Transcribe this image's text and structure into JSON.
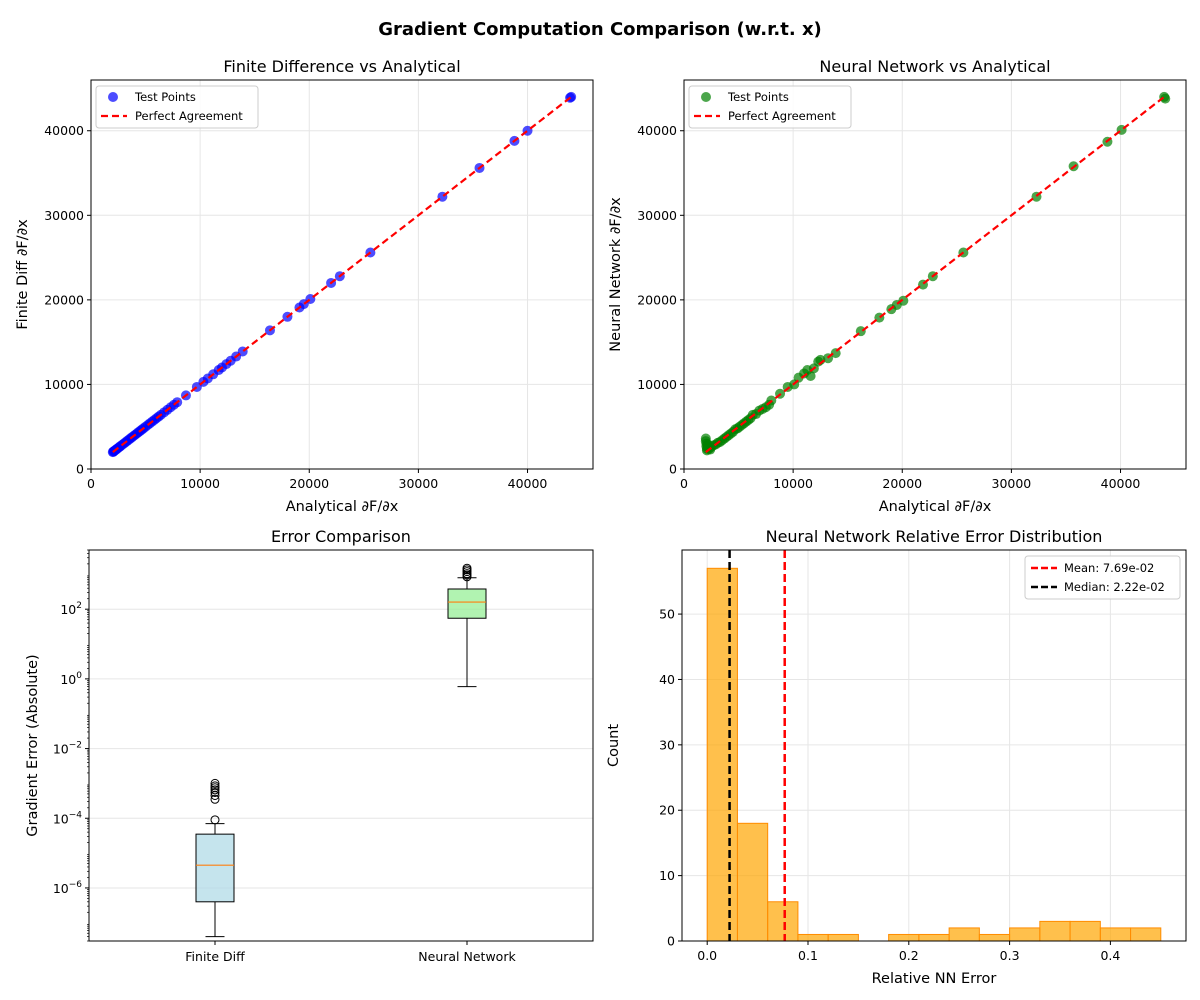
{
  "figure": {
    "suptitle": "Gradient Computation Comparison (w.r.t. x)"
  },
  "colors": {
    "fd_points": "#0000ff",
    "nn_points": "#008000",
    "perfect": "#ff0000",
    "box_fd": "#add8e6",
    "box_nn": "#90ee90",
    "median_line": "#ff7f0e",
    "hist_fill": "#ffa500",
    "hist_edge": "#ff8c00",
    "mean_line": "#ff0000",
    "median_vline": "#000000",
    "grid": "#e6e6e6"
  },
  "chart_data": [
    {
      "type": "scatter",
      "title": "Finite Difference vs Analytical",
      "xlabel": "Analytical ∂F/∂x",
      "ylabel": "Finite Diff ∂F/∂x",
      "xlim": [
        0,
        46000
      ],
      "ylim": [
        0,
        46000
      ],
      "xticks": [
        0,
        10000,
        20000,
        30000,
        40000
      ],
      "yticks": [
        0,
        10000,
        20000,
        30000,
        40000
      ],
      "grid": true,
      "legend_position": "upper-left",
      "legend": [
        "Test Points",
        "Perfect Agreement"
      ],
      "reference_line": [
        [
          2000,
          2000
        ],
        [
          44000,
          44000
        ]
      ],
      "series": [
        {
          "name": "Test Points",
          "points": [
            [
              2000,
              2000
            ],
            [
              2050,
              2050
            ],
            [
              2100,
              2100
            ],
            [
              2150,
              2150
            ],
            [
              2200,
              2200
            ],
            [
              2300,
              2300
            ],
            [
              2400,
              2400
            ],
            [
              2500,
              2500
            ],
            [
              2600,
              2600
            ],
            [
              2700,
              2700
            ],
            [
              2850,
              2850
            ],
            [
              3000,
              3000
            ],
            [
              3150,
              3150
            ],
            [
              3300,
              3300
            ],
            [
              3450,
              3450
            ],
            [
              3600,
              3600
            ],
            [
              3750,
              3750
            ],
            [
              3900,
              3900
            ],
            [
              4050,
              4050
            ],
            [
              4200,
              4200
            ],
            [
              4350,
              4350
            ],
            [
              4500,
              4500
            ],
            [
              4650,
              4650
            ],
            [
              4800,
              4800
            ],
            [
              5000,
              5000
            ],
            [
              5200,
              5200
            ],
            [
              5400,
              5400
            ],
            [
              5600,
              5600
            ],
            [
              5800,
              5800
            ],
            [
              6000,
              6000
            ],
            [
              6200,
              6200
            ],
            [
              6400,
              6400
            ],
            [
              6700,
              6700
            ],
            [
              7000,
              7000
            ],
            [
              7300,
              7300
            ],
            [
              7600,
              7600
            ],
            [
              7900,
              7900
            ],
            [
              8700,
              8700
            ],
            [
              9700,
              9700
            ],
            [
              10300,
              10300
            ],
            [
              10700,
              10700
            ],
            [
              11200,
              11200
            ],
            [
              11700,
              11700
            ],
            [
              12000,
              12000
            ],
            [
              12400,
              12400
            ],
            [
              12800,
              12800
            ],
            [
              13300,
              13300
            ],
            [
              13900,
              13900
            ],
            [
              16400,
              16400
            ],
            [
              18000,
              18000
            ],
            [
              19100,
              19100
            ],
            [
              19500,
              19500
            ],
            [
              20100,
              20100
            ],
            [
              22000,
              22000
            ],
            [
              22800,
              22800
            ],
            [
              25600,
              25600
            ],
            [
              32200,
              32200
            ],
            [
              35600,
              35600
            ],
            [
              38800,
              38800
            ],
            [
              40000,
              40000
            ],
            [
              43900,
              43900
            ],
            [
              44000,
              44000
            ]
          ]
        }
      ]
    },
    {
      "type": "scatter",
      "title": "Neural Network vs Analytical",
      "xlabel": "Analytical ∂F/∂x",
      "ylabel": "Neural Network ∂F/∂x",
      "xlim": [
        0,
        46000
      ],
      "ylim": [
        0,
        46000
      ],
      "xticks": [
        0,
        10000,
        20000,
        30000,
        40000
      ],
      "yticks": [
        0,
        10000,
        20000,
        30000,
        40000
      ],
      "grid": true,
      "legend_position": "upper-left",
      "legend": [
        "Test Points",
        "Perfect Agreement"
      ],
      "reference_line": [
        [
          2000,
          2000
        ],
        [
          44000,
          44000
        ]
      ],
      "series": [
        {
          "name": "Test Points",
          "points": [
            [
              2000,
              3600
            ],
            [
              2000,
              3300
            ],
            [
              2050,
              3000
            ],
            [
              2050,
              2700
            ],
            [
              2100,
              2400
            ],
            [
              2100,
              2200
            ],
            [
              2150,
              2600
            ],
            [
              2200,
              2900
            ],
            [
              2300,
              2400
            ],
            [
              2400,
              2300
            ],
            [
              2500,
              2600
            ],
            [
              2700,
              2800
            ],
            [
              2900,
              2900
            ],
            [
              3100,
              3100
            ],
            [
              3300,
              3200
            ],
            [
              3500,
              3400
            ],
            [
              3700,
              3600
            ],
            [
              3900,
              3800
            ],
            [
              4100,
              4000
            ],
            [
              4300,
              4200
            ],
            [
              4500,
              4400
            ],
            [
              4700,
              4700
            ],
            [
              4900,
              4800
            ],
            [
              5100,
              5000
            ],
            [
              5300,
              5200
            ],
            [
              5500,
              5400
            ],
            [
              5700,
              5600
            ],
            [
              5900,
              5800
            ],
            [
              6100,
              6000
            ],
            [
              6300,
              6400
            ],
            [
              6600,
              6500
            ],
            [
              6900,
              6900
            ],
            [
              7200,
              7100
            ],
            [
              7500,
              7300
            ],
            [
              7800,
              7600
            ],
            [
              8000,
              8100
            ],
            [
              8800,
              8900
            ],
            [
              9500,
              9700
            ],
            [
              10100,
              10000
            ],
            [
              10500,
              10800
            ],
            [
              11000,
              11300
            ],
            [
              11300,
              11700
            ],
            [
              11600,
              11000
            ],
            [
              11900,
              11900
            ],
            [
              12300,
              12700
            ],
            [
              12500,
              12900
            ],
            [
              13200,
              13100
            ],
            [
              13900,
              13700
            ],
            [
              16200,
              16300
            ],
            [
              17900,
              17900
            ],
            [
              19000,
              18900
            ],
            [
              19500,
              19400
            ],
            [
              20100,
              19900
            ],
            [
              21900,
              21800
            ],
            [
              22800,
              22800
            ],
            [
              25600,
              25600
            ],
            [
              32300,
              32200
            ],
            [
              35700,
              35800
            ],
            [
              38800,
              38700
            ],
            [
              40100,
              40100
            ],
            [
              44000,
              44000
            ],
            [
              44100,
              43800
            ]
          ]
        }
      ]
    },
    {
      "type": "box",
      "title": "Error Comparison",
      "xlabel": "",
      "ylabel": "Gradient Error (Absolute)",
      "yscale": "log",
      "ylim": [
        3e-08,
        5000
      ],
      "yticks": [
        1e-06,
        0.0001,
        0.01,
        1,
        100
      ],
      "ytick_labels": [
        {
          "base": "10",
          "exp": "−6"
        },
        {
          "base": "10",
          "exp": "−4"
        },
        {
          "base": "10",
          "exp": "−2"
        },
        {
          "base": "10",
          "exp": "0"
        },
        {
          "base": "10",
          "exp": "2"
        }
      ],
      "grid": true,
      "boxes": [
        {
          "label": "Finite Diff",
          "whislo": 4e-08,
          "q1": 4e-07,
          "median": 4.5e-06,
          "q3": 3.5e-05,
          "whishi": 7e-05,
          "fliers": [
            9e-05,
            0.00035,
            0.00045,
            0.00055,
            0.00065,
            0.00075,
            0.00085,
            0.001
          ]
        },
        {
          "label": "Neural Network",
          "whislo": 0.6,
          "q1": 55,
          "median": 160,
          "q3": 380,
          "whishi": 800,
          "fliers": [
            850,
            950,
            1050,
            1200,
            1350,
            1500
          ]
        }
      ]
    },
    {
      "type": "histogram",
      "title": "Neural Network Relative Error Distribution",
      "xlabel": "Relative NN Error",
      "ylabel": "Count",
      "xlim": [
        -0.025,
        0.475
      ],
      "ylim": [
        0,
        59.8
      ],
      "xticks": [
        0.0,
        0.1,
        0.2,
        0.3,
        0.4
      ],
      "yticks": [
        0,
        10,
        20,
        30,
        40,
        50
      ],
      "grid": true,
      "legend_position": "top-right",
      "bin_edges": [
        0.0,
        0.03,
        0.06,
        0.09,
        0.12,
        0.15,
        0.18,
        0.21,
        0.24,
        0.27,
        0.3,
        0.33,
        0.36,
        0.39,
        0.42,
        0.45
      ],
      "counts": [
        57,
        18,
        6,
        1,
        1,
        0,
        1,
        1,
        2,
        1,
        2,
        3,
        3,
        2,
        2
      ],
      "vlines": [
        {
          "name": "Mean: 7.69e-02",
          "x": 0.0769
        },
        {
          "name": "Median: 2.22e-02",
          "x": 0.0222
        }
      ]
    }
  ]
}
